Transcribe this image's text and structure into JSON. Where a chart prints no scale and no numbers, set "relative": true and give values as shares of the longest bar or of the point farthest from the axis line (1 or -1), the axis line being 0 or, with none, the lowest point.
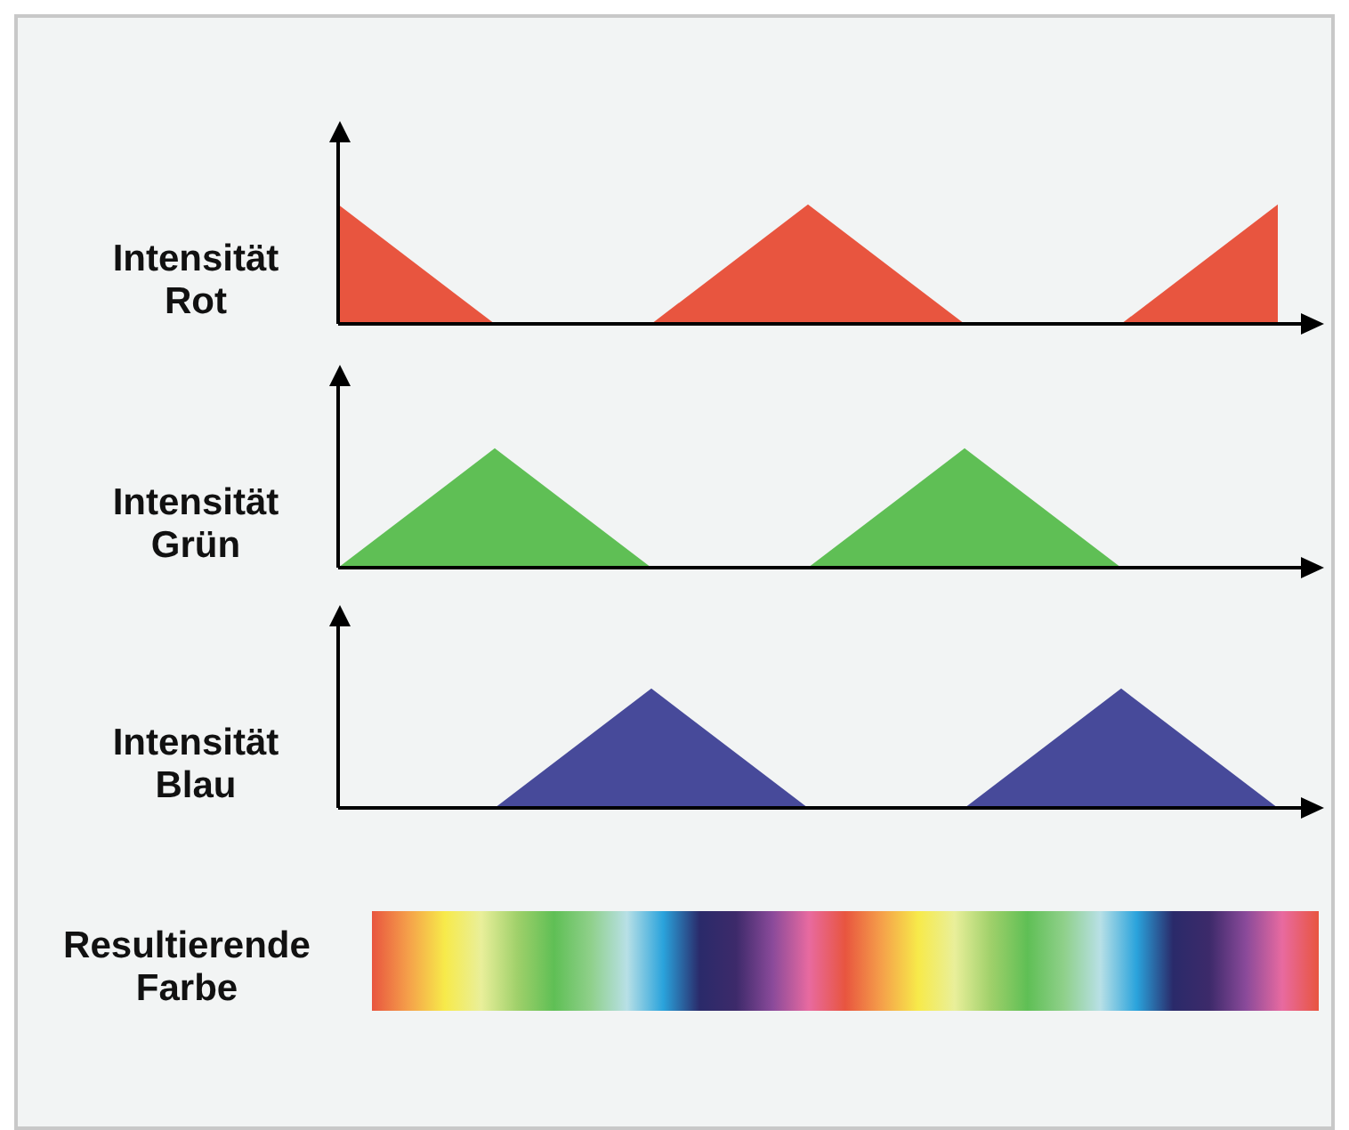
{
  "chart_data": [
    {
      "type": "area",
      "ylabel": "Intensität Rot",
      "relative": true,
      "categories": [
        null,
        null,
        null,
        null,
        null,
        null,
        null
      ],
      "series": [
        {
          "color": "#e8553f",
          "values": [
            1,
            0,
            0,
            1,
            0,
            0,
            1
          ]
        }
      ]
    },
    {
      "type": "area",
      "ylabel": "Intensität Grün",
      "relative": true,
      "categories": [
        null,
        null,
        null,
        null,
        null,
        null,
        null
      ],
      "series": [
        {
          "color": "#5fbf55",
          "values": [
            0,
            1,
            0,
            0,
            1,
            0,
            0
          ]
        }
      ]
    },
    {
      "type": "area",
      "ylabel": "Intensität Blau",
      "relative": true,
      "categories": [
        null,
        null,
        null,
        null,
        null,
        null,
        null
      ],
      "series": [
        {
          "color": "#474a9a",
          "values": [
            0,
            0,
            1,
            0,
            0,
            1,
            0
          ]
        }
      ]
    },
    {
      "type": "other",
      "title": "Resultierende Farbe"
    }
  ]
}
